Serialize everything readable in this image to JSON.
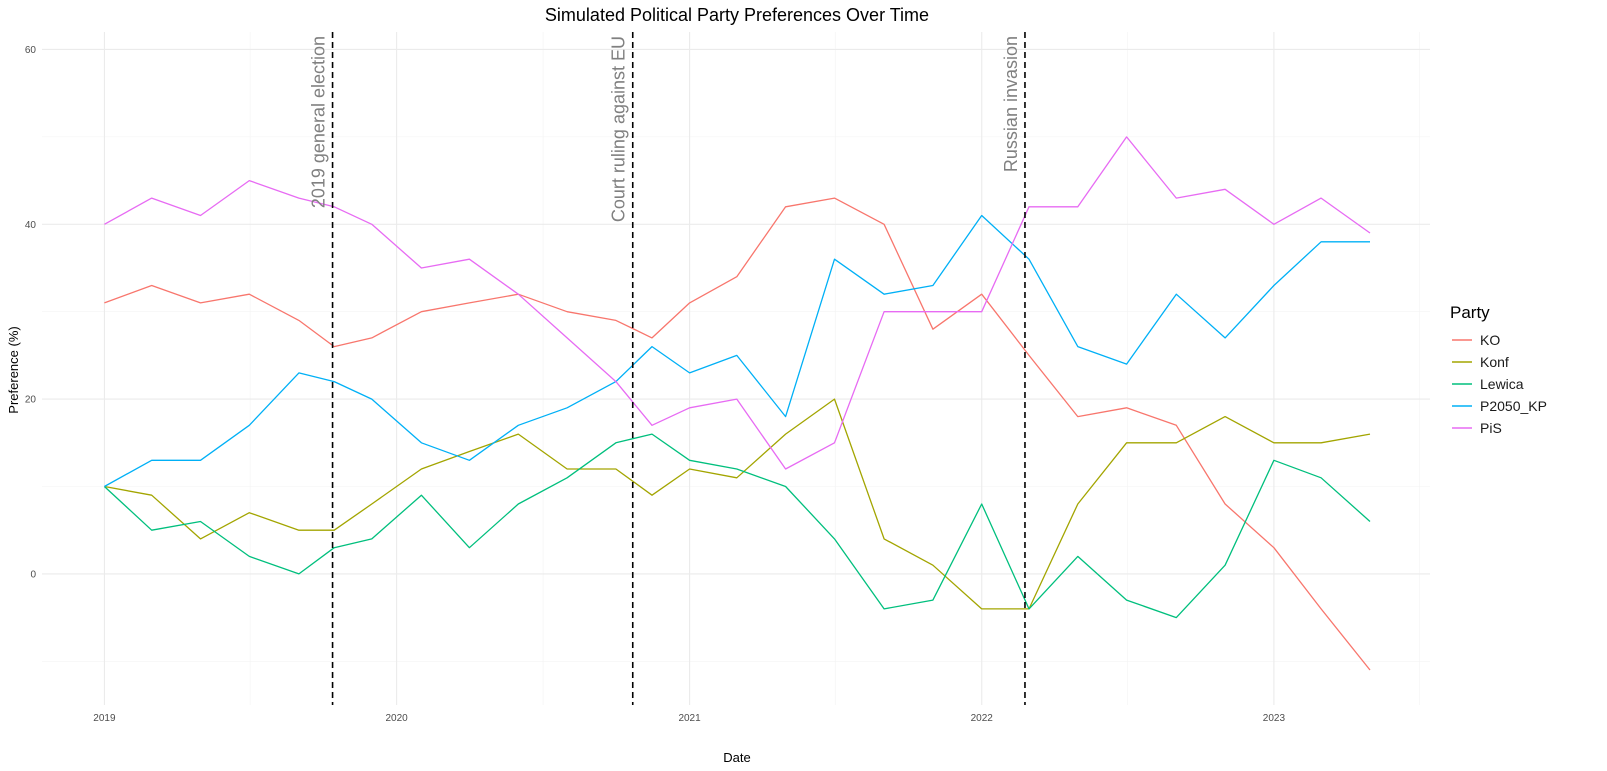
{
  "chart_data": {
    "type": "line",
    "title": "Simulated Political Party Preferences Over Time",
    "xlabel": "Date",
    "ylabel": "Preference (%)",
    "xlim": [
      "2018-10-15",
      "2023-07-15"
    ],
    "ylim": [
      -15,
      62
    ],
    "x_ticks": [
      "2019",
      "2020",
      "2021",
      "2022",
      "2023"
    ],
    "y_ticks": [
      0,
      20,
      40,
      60
    ],
    "grid": true,
    "legend": {
      "title": "Party",
      "position": "right"
    },
    "events": [
      {
        "date": "2019-10-13",
        "label": "2019 general election"
      },
      {
        "date": "2020-10-22",
        "label": "Court ruling against EU"
      },
      {
        "date": "2022-02-24",
        "label": "Russian invasion"
      }
    ],
    "x": [
      "2019-01-01",
      "2019-03-01",
      "2019-05-01",
      "2019-07-01",
      "2019-09-01",
      "2019-10-15",
      "2019-12-01",
      "2020-02-01",
      "2020-04-01",
      "2020-06-01",
      "2020-08-01",
      "2020-10-01",
      "2020-11-15",
      "2021-01-01",
      "2021-03-01",
      "2021-05-01",
      "2021-07-01",
      "2021-09-01",
      "2021-11-01",
      "2022-01-01",
      "2022-03-01",
      "2022-05-01",
      "2022-07-01",
      "2022-09-01",
      "2022-11-01",
      "2023-01-01",
      "2023-03-01",
      "2023-05-01"
    ],
    "series": [
      {
        "name": "KO",
        "color": "#F8766D",
        "values": [
          31,
          33,
          31,
          32,
          29,
          26,
          27,
          30,
          31,
          32,
          30,
          29,
          27,
          31,
          34,
          42,
          43,
          40,
          28,
          32,
          25,
          18,
          19,
          17,
          8,
          3,
          -4,
          -11
        ]
      },
      {
        "name": "Konf",
        "color": "#A3A500",
        "values": [
          10,
          9,
          4,
          7,
          5,
          5,
          8,
          12,
          14,
          16,
          12,
          12,
          9,
          12,
          11,
          16,
          20,
          4,
          1,
          -4,
          -4,
          8,
          15,
          15,
          18,
          15,
          15,
          16
        ]
      },
      {
        "name": "Lewica",
        "color": "#00BF7D",
        "values": [
          10,
          5,
          6,
          2,
          0,
          3,
          4,
          9,
          3,
          8,
          11,
          15,
          16,
          13,
          12,
          10,
          4,
          -4,
          -3,
          8,
          -4,
          2,
          -3,
          -5,
          1,
          13,
          11,
          6
        ]
      },
      {
        "name": "P2050_KP",
        "color": "#00B0F6",
        "values": [
          10,
          13,
          13,
          17,
          23,
          22,
          20,
          15,
          13,
          17,
          19,
          22,
          26,
          23,
          25,
          18,
          36,
          32,
          33,
          41,
          36,
          26,
          24,
          32,
          27,
          33,
          38,
          38
        ]
      },
      {
        "name": "PiS",
        "color": "#E76BF3",
        "values": [
          40,
          43,
          41,
          45,
          43,
          42,
          40,
          35,
          36,
          32,
          27,
          22,
          17,
          19,
          20,
          12,
          15,
          30,
          30,
          30,
          42,
          42,
          50,
          43,
          44,
          40,
          43,
          39
        ]
      }
    ]
  }
}
